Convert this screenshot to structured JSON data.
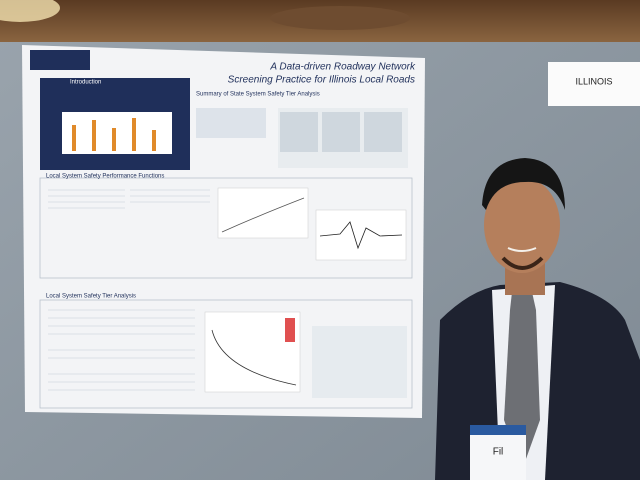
{
  "poster": {
    "title_line1": "A Data-driven Roadway Network",
    "title_line2": "Screening Practice for Illinois Local Roads",
    "sections": [
      "Introduction",
      "Summary of State System Safety Tier Analysis",
      "Local System Safety Performance Functions",
      "Local System Safety Tier Analysis"
    ]
  },
  "sign": "ILLINOIS",
  "badge": "Fil"
}
